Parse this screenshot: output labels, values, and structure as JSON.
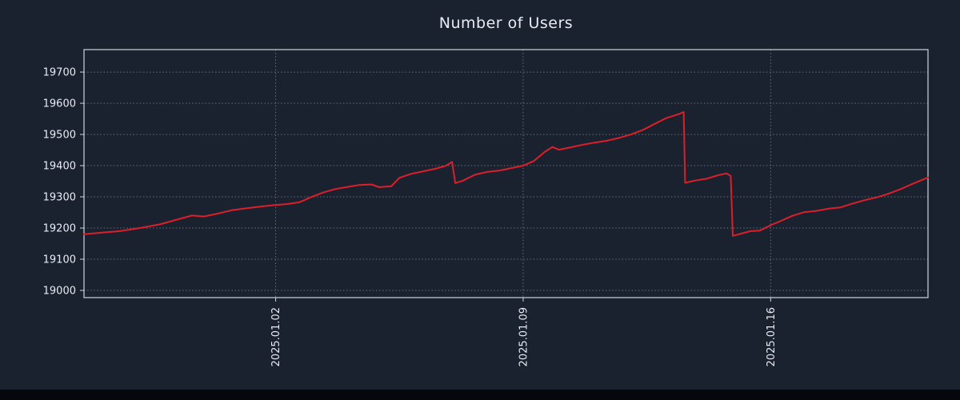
{
  "chart_data": {
    "type": "line",
    "title": "Number of Users",
    "series_name": "Number of Users",
    "legend": "none",
    "grid": true,
    "x_unit": "days since 2025-01-01",
    "x_ticks": [
      {
        "x": 1,
        "label": "2025.01.02"
      },
      {
        "x": 8,
        "label": "2025.01.09"
      },
      {
        "x": 15,
        "label": "2025.01.16"
      }
    ],
    "y_ticks": [
      19000,
      19100,
      19200,
      19300,
      19400,
      19500,
      19600,
      19700
    ],
    "xlim": [
      -4.42,
      19.45
    ],
    "ylim": [
      18977,
      19772
    ],
    "colors": {
      "line": "#dd1f2a",
      "background": "#1a2230",
      "text": "#e8ebf1",
      "frame": "#cfd4dc",
      "grid": "#a6adb8",
      "bottom_bar": "#05070b"
    },
    "points": [
      [
        -4.42,
        19180
      ],
      [
        -3.85,
        19186
      ],
      [
        -3.4,
        19190
      ],
      [
        -2.84,
        19200
      ],
      [
        -2.27,
        19212
      ],
      [
        -1.82,
        19226
      ],
      [
        -1.37,
        19240
      ],
      [
        -1.03,
        19237
      ],
      [
        -0.69,
        19245
      ],
      [
        -0.24,
        19257
      ],
      [
        0.21,
        19264
      ],
      [
        0.66,
        19270
      ],
      [
        1.0,
        19274
      ],
      [
        1.34,
        19277
      ],
      [
        1.68,
        19283
      ],
      [
        2.02,
        19300
      ],
      [
        2.35,
        19314
      ],
      [
        2.69,
        19325
      ],
      [
        3.03,
        19332
      ],
      [
        3.37,
        19338
      ],
      [
        3.71,
        19340
      ],
      [
        3.93,
        19331
      ],
      [
        4.27,
        19334
      ],
      [
        4.5,
        19361
      ],
      [
        4.84,
        19374
      ],
      [
        5.18,
        19382
      ],
      [
        5.51,
        19390
      ],
      [
        5.81,
        19399
      ],
      [
        5.99,
        19412
      ],
      [
        6.08,
        19344
      ],
      [
        6.3,
        19352
      ],
      [
        6.64,
        19371
      ],
      [
        6.98,
        19380
      ],
      [
        7.32,
        19384
      ],
      [
        7.66,
        19392
      ],
      [
        8.0,
        19400
      ],
      [
        8.29,
        19414
      ],
      [
        8.61,
        19444
      ],
      [
        8.83,
        19460
      ],
      [
        9.01,
        19451
      ],
      [
        9.35,
        19459
      ],
      [
        9.69,
        19467
      ],
      [
        10.03,
        19474
      ],
      [
        10.37,
        19480
      ],
      [
        10.71,
        19489
      ],
      [
        11.05,
        19500
      ],
      [
        11.38,
        19514
      ],
      [
        11.72,
        19534
      ],
      [
        12.06,
        19553
      ],
      [
        12.4,
        19565
      ],
      [
        12.54,
        19572
      ],
      [
        12.58,
        19345
      ],
      [
        12.85,
        19352
      ],
      [
        13.19,
        19358
      ],
      [
        13.53,
        19370
      ],
      [
        13.75,
        19375
      ],
      [
        13.87,
        19367
      ],
      [
        13.93,
        19175
      ],
      [
        14.16,
        19182
      ],
      [
        14.43,
        19190
      ],
      [
        14.7,
        19192
      ],
      [
        15.0,
        19209
      ],
      [
        15.27,
        19222
      ],
      [
        15.61,
        19239
      ],
      [
        15.95,
        19251
      ],
      [
        16.29,
        19255
      ],
      [
        16.63,
        19262
      ],
      [
        16.97,
        19266
      ],
      [
        17.31,
        19278
      ],
      [
        17.65,
        19289
      ],
      [
        17.99,
        19298
      ],
      [
        18.33,
        19310
      ],
      [
        18.66,
        19324
      ],
      [
        19.0,
        19341
      ],
      [
        19.23,
        19352
      ],
      [
        19.45,
        19362
      ]
    ]
  }
}
